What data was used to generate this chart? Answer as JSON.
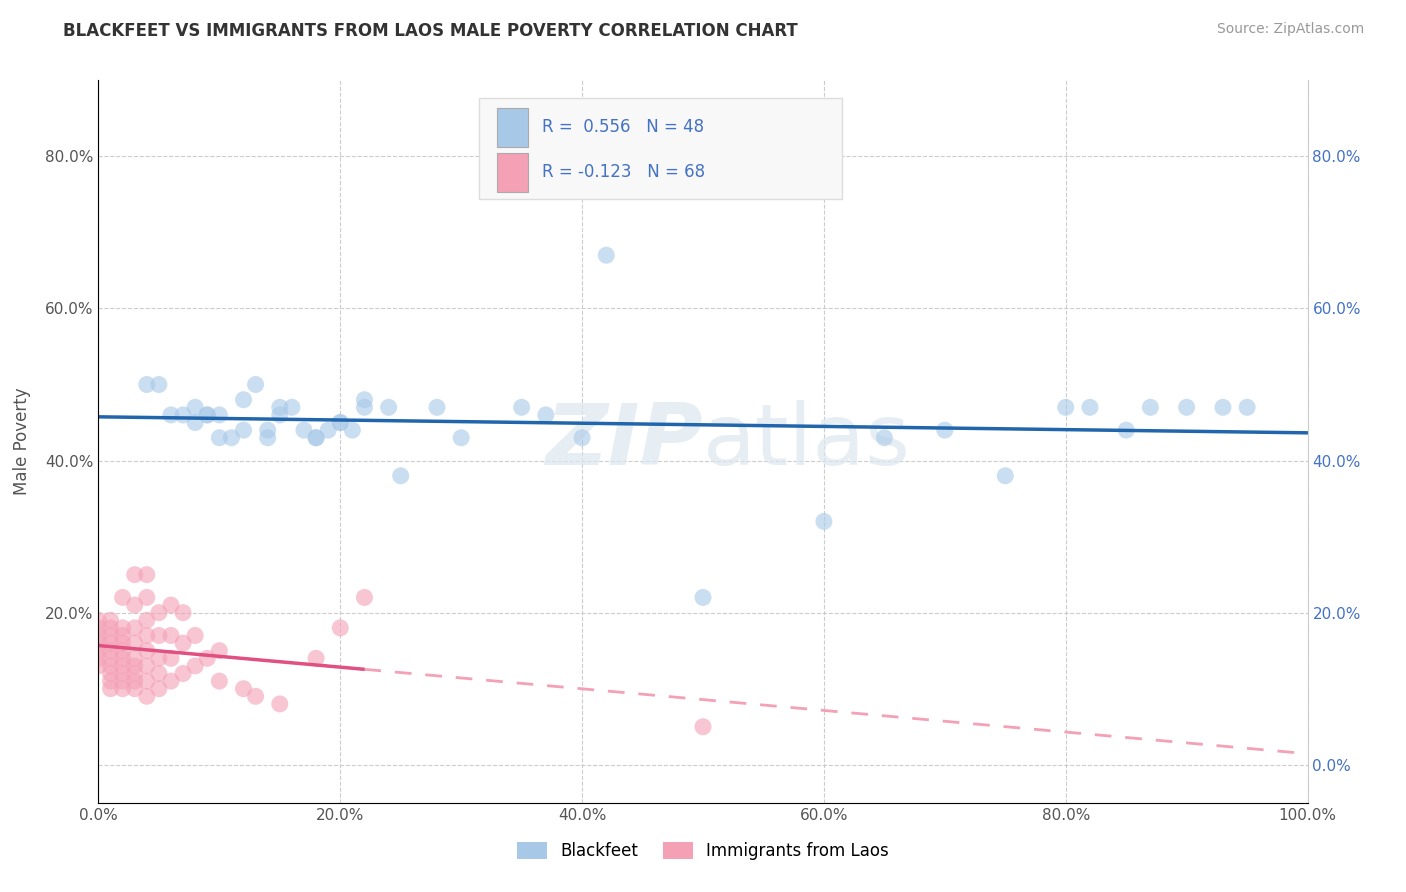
{
  "title": "BLACKFEET VS IMMIGRANTS FROM LAOS MALE POVERTY CORRELATION CHART",
  "source": "Source: ZipAtlas.com",
  "ylabel": "Male Poverty",
  "xlim": [
    0.0,
    1.0
  ],
  "ylim": [
    -0.05,
    0.9
  ],
  "xticks": [
    0.0,
    0.2,
    0.4,
    0.6,
    0.8,
    1.0
  ],
  "yticks": [
    0.0,
    0.2,
    0.4,
    0.6,
    0.8
  ],
  "xticklabels": [
    "0.0%",
    "20.0%",
    "40.0%",
    "60.0%",
    "80.0%",
    "100.0%"
  ],
  "yticklabels": [
    "",
    "20.0%",
    "40.0%",
    "60.0%",
    "80.0%"
  ],
  "yticklabels_right": [
    "0.0%",
    "20.0%",
    "40.0%",
    "60.0%",
    "80.0%"
  ],
  "legend_labels": [
    "Blackfeet",
    "Immigrants from Laos"
  ],
  "R_blue": 0.556,
  "N_blue": 48,
  "R_pink": -0.123,
  "N_pink": 68,
  "blue_color": "#a8c8e8",
  "pink_color": "#f4a0b5",
  "blue_line_color": "#2166ac",
  "pink_line_color": "#e05080",
  "pink_dash_color": "#f4a0b5",
  "watermark": "ZIPatlas",
  "grid_color": "#cccccc",
  "blue_scatter": [
    [
      0.04,
      0.5
    ],
    [
      0.05,
      0.5
    ],
    [
      0.06,
      0.46
    ],
    [
      0.07,
      0.46
    ],
    [
      0.08,
      0.47
    ],
    [
      0.08,
      0.45
    ],
    [
      0.09,
      0.46
    ],
    [
      0.09,
      0.46
    ],
    [
      0.1,
      0.46
    ],
    [
      0.1,
      0.43
    ],
    [
      0.11,
      0.43
    ],
    [
      0.12,
      0.44
    ],
    [
      0.12,
      0.48
    ],
    [
      0.13,
      0.5
    ],
    [
      0.14,
      0.44
    ],
    [
      0.14,
      0.43
    ],
    [
      0.15,
      0.47
    ],
    [
      0.15,
      0.46
    ],
    [
      0.16,
      0.47
    ],
    [
      0.17,
      0.44
    ],
    [
      0.18,
      0.43
    ],
    [
      0.18,
      0.43
    ],
    [
      0.19,
      0.44
    ],
    [
      0.2,
      0.45
    ],
    [
      0.2,
      0.45
    ],
    [
      0.21,
      0.44
    ],
    [
      0.22,
      0.47
    ],
    [
      0.22,
      0.48
    ],
    [
      0.24,
      0.47
    ],
    [
      0.25,
      0.38
    ],
    [
      0.28,
      0.47
    ],
    [
      0.3,
      0.43
    ],
    [
      0.35,
      0.47
    ],
    [
      0.37,
      0.46
    ],
    [
      0.4,
      0.43
    ],
    [
      0.42,
      0.67
    ],
    [
      0.5,
      0.22
    ],
    [
      0.6,
      0.32
    ],
    [
      0.65,
      0.43
    ],
    [
      0.7,
      0.44
    ],
    [
      0.75,
      0.38
    ],
    [
      0.8,
      0.47
    ],
    [
      0.82,
      0.47
    ],
    [
      0.85,
      0.44
    ],
    [
      0.87,
      0.47
    ],
    [
      0.9,
      0.47
    ],
    [
      0.93,
      0.47
    ],
    [
      0.95,
      0.47
    ]
  ],
  "pink_scatter": [
    [
      0.0,
      0.13
    ],
    [
      0.0,
      0.14
    ],
    [
      0.0,
      0.15
    ],
    [
      0.0,
      0.16
    ],
    [
      0.0,
      0.17
    ],
    [
      0.0,
      0.18
    ],
    [
      0.0,
      0.19
    ],
    [
      0.01,
      0.1
    ],
    [
      0.01,
      0.11
    ],
    [
      0.01,
      0.12
    ],
    [
      0.01,
      0.13
    ],
    [
      0.01,
      0.14
    ],
    [
      0.01,
      0.15
    ],
    [
      0.01,
      0.16
    ],
    [
      0.01,
      0.17
    ],
    [
      0.01,
      0.18
    ],
    [
      0.01,
      0.19
    ],
    [
      0.02,
      0.1
    ],
    [
      0.02,
      0.11
    ],
    [
      0.02,
      0.12
    ],
    [
      0.02,
      0.13
    ],
    [
      0.02,
      0.14
    ],
    [
      0.02,
      0.15
    ],
    [
      0.02,
      0.16
    ],
    [
      0.02,
      0.17
    ],
    [
      0.02,
      0.18
    ],
    [
      0.02,
      0.22
    ],
    [
      0.03,
      0.1
    ],
    [
      0.03,
      0.11
    ],
    [
      0.03,
      0.12
    ],
    [
      0.03,
      0.13
    ],
    [
      0.03,
      0.14
    ],
    [
      0.03,
      0.16
    ],
    [
      0.03,
      0.18
    ],
    [
      0.03,
      0.21
    ],
    [
      0.03,
      0.25
    ],
    [
      0.04,
      0.09
    ],
    [
      0.04,
      0.11
    ],
    [
      0.04,
      0.13
    ],
    [
      0.04,
      0.15
    ],
    [
      0.04,
      0.17
    ],
    [
      0.04,
      0.19
    ],
    [
      0.04,
      0.22
    ],
    [
      0.04,
      0.25
    ],
    [
      0.05,
      0.1
    ],
    [
      0.05,
      0.12
    ],
    [
      0.05,
      0.14
    ],
    [
      0.05,
      0.17
    ],
    [
      0.05,
      0.2
    ],
    [
      0.06,
      0.11
    ],
    [
      0.06,
      0.14
    ],
    [
      0.06,
      0.17
    ],
    [
      0.06,
      0.21
    ],
    [
      0.07,
      0.12
    ],
    [
      0.07,
      0.16
    ],
    [
      0.07,
      0.2
    ],
    [
      0.08,
      0.13
    ],
    [
      0.08,
      0.17
    ],
    [
      0.09,
      0.14
    ],
    [
      0.1,
      0.11
    ],
    [
      0.1,
      0.15
    ],
    [
      0.12,
      0.1
    ],
    [
      0.13,
      0.09
    ],
    [
      0.15,
      0.08
    ],
    [
      0.18,
      0.14
    ],
    [
      0.2,
      0.18
    ],
    [
      0.22,
      0.22
    ],
    [
      0.5,
      0.05
    ]
  ]
}
